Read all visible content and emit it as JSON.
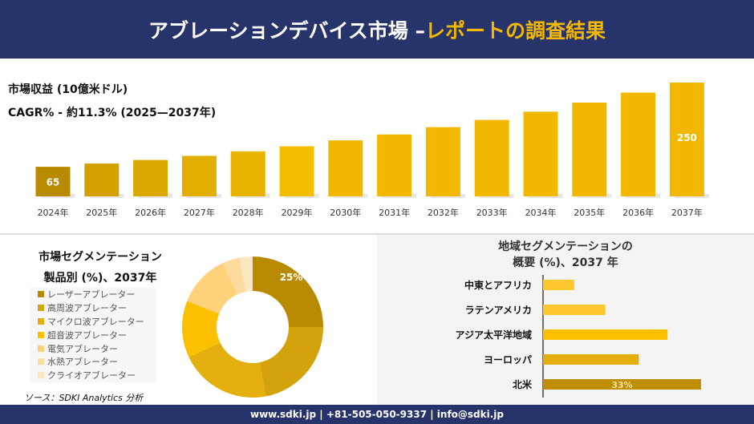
{
  "header": {
    "title_main": "アブレーションデバイス市場 –",
    "title_highlight": "レポートの調査結果"
  },
  "top": {
    "revenue_label": "市場収益 (10億米ドル)",
    "cagr_label": "CAGR% - 約11.3% (2025—2037年)"
  },
  "chart_data": [
    {
      "type": "bar",
      "categories": [
        "2024年",
        "2025年",
        "2026年",
        "2027年",
        "2028年",
        "2029年",
        "2030年",
        "2031年",
        "2032年",
        "2033年",
        "2034年",
        "2035年",
        "2036年",
        "2037年"
      ],
      "values": [
        65,
        72,
        80,
        89,
        99,
        110,
        123,
        136,
        152,
        168,
        186,
        206,
        228,
        250
      ],
      "data_labels": {
        "0": "65",
        "13": "250"
      },
      "ylabel": "",
      "grid": false,
      "colors": [
        "#b88a00",
        "#d4a000",
        "#dba800",
        "#e2ae00",
        "#e9b400",
        "#f5bf00",
        "#f2b800",
        "#f2b800",
        "#f2b800",
        "#f2b800",
        "#f2b800",
        "#f2b800",
        "#f2b800",
        "#f2b800"
      ]
    },
    {
      "type": "pie",
      "title": "市場セグメンテーション",
      "subtitle": "製品別 (%)、2037年",
      "categories": [
        "レーザーアブレーター",
        "高周波アブレーター",
        "マイクロ波アブレーター",
        "超音波アブレーター",
        "電気アブレーター",
        "水熱アブレーター",
        "クライオアブレーター"
      ],
      "values": [
        25,
        22,
        21,
        13,
        12,
        4,
        3
      ],
      "data_labels": {
        "0": "25%"
      },
      "colors": [
        "#b88a00",
        "#d4a20a",
        "#e3b010",
        "#fbc100",
        "#fdd27a",
        "#fddb9e",
        "#fde6c4"
      ],
      "legend": "left"
    },
    {
      "type": "bar",
      "orientation": "horizontal",
      "title": "地域セグメンテーションの",
      "subtitle": "概要 (%)、2037 年",
      "categories": [
        "中東とアフリカ",
        "ラテンアメリカ",
        "アジア太平洋地域",
        "ヨーロッパ",
        "北米"
      ],
      "values": [
        6.5,
        13,
        26,
        20,
        33
      ],
      "data_labels": {
        "4": "33%"
      },
      "colors": [
        "#fec72e",
        "#fec72e",
        "#fbc100",
        "#e3ad0a",
        "#bf8f00"
      ]
    }
  ],
  "source": "ソース：SDKI Analytics 分析",
  "footer": "www.sdki.jp | +81-505-050-9337 | info@sdki.jp"
}
